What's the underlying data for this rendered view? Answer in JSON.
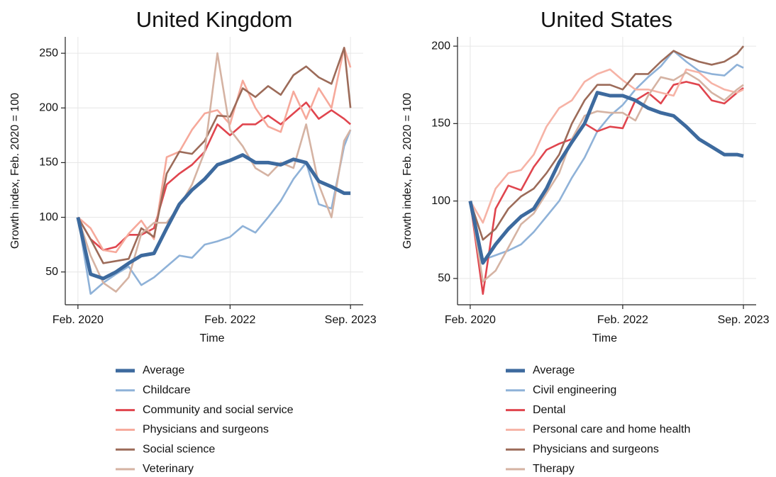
{
  "chart_data": [
    {
      "type": "line",
      "title": "United Kingdom",
      "xlabel": "Time",
      "ylabel": "Growth index, Feb. 2020 = 100",
      "x": [
        "2020-02",
        "2020-04",
        "2020-06",
        "2020-08",
        "2020-10",
        "2020-12",
        "2021-02",
        "2021-04",
        "2021-06",
        "2021-08",
        "2021-10",
        "2021-12",
        "2022-02",
        "2022-04",
        "2022-06",
        "2022-08",
        "2022-10",
        "2022-12",
        "2023-02",
        "2023-04",
        "2023-06",
        "2023-08",
        "2023-09"
      ],
      "xlim": [
        "2019-12",
        "2023-11"
      ],
      "xticks": [
        {
          "value": "2020-02",
          "label": "Feb. 2020"
        },
        {
          "value": "2022-02",
          "label": "Feb. 2022"
        },
        {
          "value": "2023-09",
          "label": "Sep. 2023"
        }
      ],
      "ylim": [
        20,
        265
      ],
      "yticks": [
        50,
        100,
        150,
        200,
        250
      ],
      "grid": true,
      "series": [
        {
          "name": "Average",
          "color": "#3d6a9e",
          "values": [
            100,
            48,
            44,
            50,
            58,
            65,
            67,
            90,
            112,
            125,
            135,
            148,
            152,
            157,
            150,
            150,
            148,
            153,
            150,
            133,
            128,
            122,
            122
          ]
        },
        {
          "name": "Childcare",
          "color": "#8fb2d8",
          "values": [
            100,
            30,
            40,
            48,
            55,
            38,
            45,
            55,
            65,
            63,
            75,
            78,
            82,
            92,
            86,
            100,
            115,
            135,
            150,
            112,
            108,
            165,
            180
          ]
        },
        {
          "name": "Community and social service",
          "color": "#e0454e",
          "values": [
            100,
            80,
            70,
            73,
            84,
            84,
            90,
            130,
            140,
            148,
            160,
            185,
            175,
            185,
            185,
            193,
            185,
            195,
            205,
            190,
            198,
            190,
            185
          ]
        },
        {
          "name": "Physicians and surgeons",
          "color": "#f6a99b",
          "values": [
            100,
            90,
            70,
            68,
            85,
            97,
            80,
            155,
            160,
            180,
            195,
            198,
            185,
            225,
            200,
            183,
            178,
            215,
            190,
            218,
            200,
            255,
            237
          ]
        },
        {
          "name": "Social science",
          "color": "#9c6b59",
          "values": [
            100,
            80,
            58,
            60,
            62,
            90,
            82,
            140,
            160,
            158,
            170,
            193,
            192,
            218,
            210,
            220,
            212,
            230,
            238,
            228,
            222,
            255,
            200
          ]
        },
        {
          "name": "Veterinary",
          "color": "#d5b3a3",
          "values": [
            100,
            65,
            40,
            32,
            45,
            85,
            95,
            95,
            110,
            130,
            160,
            250,
            180,
            165,
            145,
            138,
            150,
            145,
            185,
            130,
            100,
            170,
            180
          ]
        }
      ]
    },
    {
      "type": "line",
      "title": "United States",
      "xlabel": "Time",
      "ylabel": "Growth index, Feb. 2020 = 100",
      "x": [
        "2020-02",
        "2020-04",
        "2020-06",
        "2020-08",
        "2020-10",
        "2020-12",
        "2021-02",
        "2021-04",
        "2021-06",
        "2021-08",
        "2021-10",
        "2021-12",
        "2022-02",
        "2022-04",
        "2022-06",
        "2022-08",
        "2022-10",
        "2022-12",
        "2023-02",
        "2023-04",
        "2023-06",
        "2023-08",
        "2023-09"
      ],
      "xlim": [
        "2019-12",
        "2023-11"
      ],
      "xticks": [
        {
          "value": "2020-02",
          "label": "Feb. 2020"
        },
        {
          "value": "2022-02",
          "label": "Feb. 2022"
        },
        {
          "value": "2023-09",
          "label": "Sep. 2023"
        }
      ],
      "ylim": [
        33,
        206
      ],
      "yticks": [
        50,
        100,
        150,
        200
      ],
      "grid": true,
      "series": [
        {
          "name": "Average",
          "color": "#3d6a9e",
          "values": [
            100,
            60,
            72,
            82,
            90,
            95,
            108,
            125,
            138,
            150,
            170,
            168,
            168,
            165,
            160,
            157,
            155,
            148,
            140,
            135,
            130,
            130,
            129
          ]
        },
        {
          "name": "Civil engineering",
          "color": "#8fb2d8",
          "values": [
            100,
            62,
            65,
            68,
            72,
            80,
            90,
            100,
            115,
            128,
            145,
            155,
            162,
            172,
            180,
            187,
            197,
            190,
            184,
            182,
            181,
            188,
            186
          ]
        },
        {
          "name": "Dental",
          "color": "#e0454e",
          "values": [
            100,
            40,
            95,
            110,
            107,
            122,
            133,
            137,
            140,
            150,
            145,
            148,
            147,
            165,
            170,
            163,
            175,
            177,
            175,
            165,
            163,
            170,
            173
          ]
        },
        {
          "name": "Personal care and home health",
          "color": "#f6b3a6",
          "values": [
            100,
            86,
            108,
            118,
            120,
            130,
            148,
            160,
            165,
            177,
            182,
            185,
            178,
            172,
            172,
            170,
            168,
            185,
            183,
            176,
            172,
            170,
            172
          ]
        },
        {
          "name": "Physicians and surgeons",
          "color": "#9c6b59",
          "values": [
            100,
            75,
            82,
            95,
            103,
            108,
            118,
            130,
            150,
            165,
            175,
            175,
            172,
            182,
            182,
            190,
            197,
            193,
            190,
            188,
            190,
            195,
            200
          ]
        },
        {
          "name": "Therapy",
          "color": "#d5b3a3",
          "values": [
            100,
            48,
            55,
            70,
            85,
            92,
            105,
            118,
            140,
            155,
            158,
            157,
            157,
            152,
            168,
            180,
            178,
            183,
            178,
            170,
            165,
            172,
            175
          ]
        }
      ]
    }
  ]
}
